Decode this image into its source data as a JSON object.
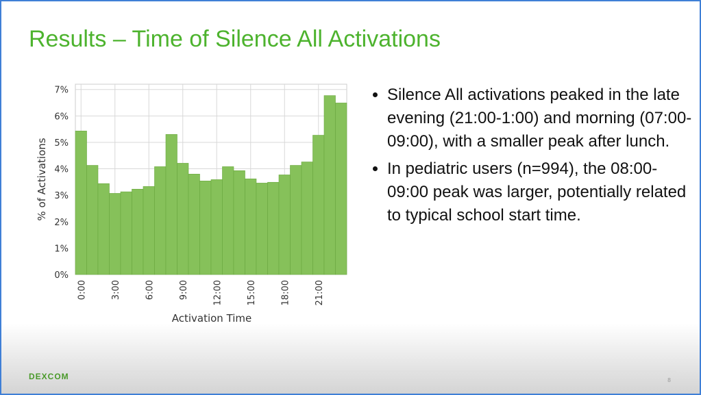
{
  "slide": {
    "title": "Results – Time of Silence All Activations",
    "bullets": [
      "Silence All activations peaked in the late evening (21:00-1:00) and morning (07:00-09:00), with a smaller peak after lunch.",
      "In pediatric users (n=994), the 08:00-09:00 peak was larger, potentially related to typical school start time."
    ],
    "logo": "DEXCOM",
    "page_number": 8
  },
  "chart_data": {
    "type": "bar",
    "x_label": "Activation Time",
    "y_label": "% of Activations",
    "categories": [
      "0:00",
      null,
      null,
      "3:00",
      null,
      null,
      "6:00",
      null,
      null,
      "9:00",
      null,
      null,
      "12:00",
      null,
      null,
      "15:00",
      null,
      null,
      "18:00",
      null,
      null,
      "21:00",
      null,
      null
    ],
    "values": [
      5.43,
      4.13,
      3.44,
      3.07,
      3.13,
      3.23,
      3.33,
      4.08,
      5.3,
      4.21,
      3.8,
      3.54,
      3.59,
      4.08,
      3.93,
      3.62,
      3.46,
      3.49,
      3.77,
      4.13,
      4.26,
      5.27,
      6.77,
      6.49
    ],
    "color": "#86c15a",
    "ylim": [
      0,
      7.2
    ],
    "yticks": [
      {
        "value": 0,
        "label": "0%"
      },
      {
        "value": 1,
        "label": "1%"
      },
      {
        "value": 2,
        "label": "2%"
      },
      {
        "value": 3,
        "label": "3%"
      },
      {
        "value": 4,
        "label": "4%"
      },
      {
        "value": 5,
        "label": "5%"
      },
      {
        "value": 6,
        "label": "6%"
      },
      {
        "value": 7,
        "label": "7%"
      }
    ],
    "grid": true
  }
}
